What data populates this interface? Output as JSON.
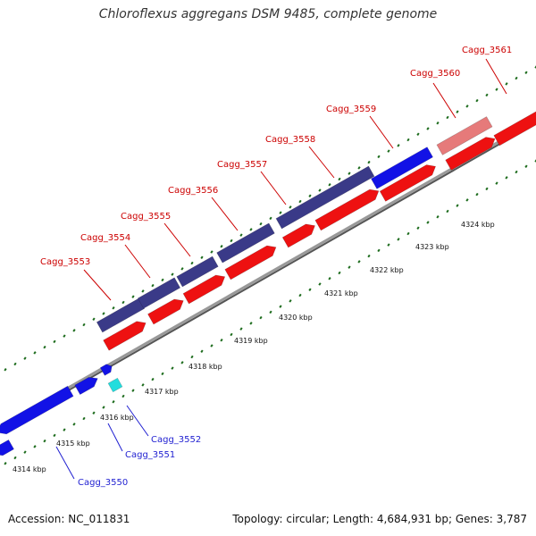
{
  "title": "Chloroflexus aggregans DSM 9485, complete genome",
  "accession_text": "Accession: NC_011831",
  "summary_text": "Topology: circular; Length: 4,684,931 bp; Genes: 3,787",
  "colors": {
    "backbone": "#999999",
    "backbone_shadow": "#555555",
    "tick_green": "#1c6b1c",
    "label_red": "#cc0000",
    "label_blue": "#1f1fd1",
    "forward_cds": "#3a3a88",
    "forward_cds_blue": "#1212e6",
    "forward_cds_pale": "#e67a7a",
    "reverse_cds": "#ee1111",
    "rna": "#22dddd"
  },
  "scale_labels": [
    "4314 kbp",
    "4315 kbp",
    "4316 kbp",
    "4317 kbp",
    "4318 kbp",
    "4319 kbp",
    "4320 kbp",
    "4321 kbp",
    "4322 kbp",
    "4323 kbp",
    "4324 kbp"
  ],
  "forward_gene_labels": [
    "Cagg_3553",
    "Cagg_3554",
    "Cagg_3555",
    "Cagg_3556",
    "Cagg_3557",
    "Cagg_3558",
    "Cagg_3559",
    "Cagg_3560",
    "Cagg_3561"
  ],
  "reverse_gene_labels": [
    "Cagg_3550",
    "Cagg_3551",
    "Cagg_3552"
  ]
}
